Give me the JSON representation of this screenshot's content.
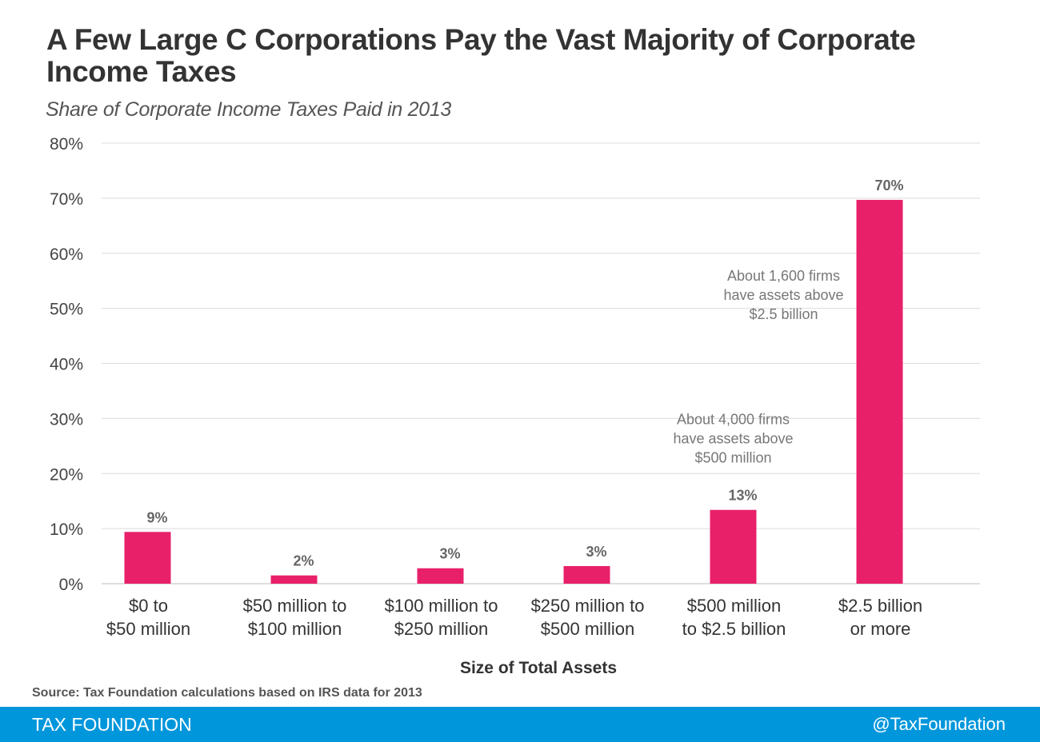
{
  "title": "A Few Large C Corporations Pay the Vast Majority of Corporate Income Taxes",
  "subtitle": "Share of Corporate Income Taxes Paid in 2013",
  "source": "Source: Tax Foundation calculations based on IRS data for 2013",
  "footer": {
    "left": "TAX FOUNDATION",
    "right": "@TaxFoundation",
    "background": "#0096dc"
  },
  "chart_data": {
    "type": "bar",
    "categories": [
      [
        "$0 to",
        "$50 million"
      ],
      [
        "$50 million to",
        "$100 million"
      ],
      [
        "$100 million to",
        "$250 million"
      ],
      [
        "$250 million to",
        "$500 million"
      ],
      [
        "$500 million",
        "to $2.5 billion"
      ],
      [
        "$2.5 billion",
        "or more"
      ]
    ],
    "values": [
      9.4,
      1.5,
      2.8,
      3.2,
      13.4,
      69.7
    ],
    "data_labels": [
      "9%",
      "2%",
      "3%",
      "3%",
      "13%",
      "70%"
    ],
    "xlabel": "Size of Total Assets",
    "ylabel": "",
    "ylim": [
      0,
      80
    ],
    "yticks": [
      0,
      10,
      20,
      30,
      40,
      50,
      60,
      70,
      80
    ],
    "ytick_labels": [
      "0%",
      "10%",
      "20%",
      "30%",
      "40%",
      "50%",
      "60%",
      "70%",
      "80%"
    ],
    "grid": true,
    "bar_color": "#e8206a",
    "annotations": [
      {
        "category_index": 4,
        "at_value": 29,
        "lines": [
          "About 4,000  firms",
          "have assets above",
          "$500 million"
        ]
      },
      {
        "category_index": 5,
        "at_value": 55,
        "lines": [
          "About 1,600  firms",
          "have assets above",
          "$2.5 billion"
        ]
      }
    ]
  }
}
